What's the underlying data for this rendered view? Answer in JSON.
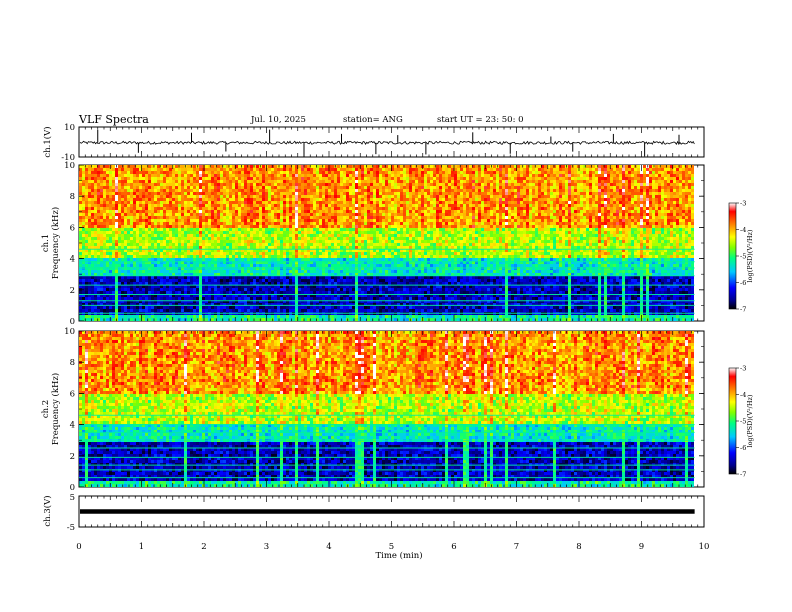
{
  "header": {
    "title": "VLF Spectra",
    "date": "Jul. 10, 2025",
    "station": "station= ANG",
    "start": "start UT = 23: 50: 0"
  },
  "colors": {
    "spectrogram_scale": [
      "#000000",
      "#00008b",
      "#0000ff",
      "#00c8ff",
      "#00ff80",
      "#80ff00",
      "#ffff00",
      "#ff8000",
      "#ff0000",
      "#ffffff"
    ]
  },
  "chart_data": [
    {
      "type": "line",
      "name": "ch1-waveform",
      "ylabel": "ch.1(V)",
      "ylim": [
        -10,
        10
      ],
      "ytick_labels": [
        "10",
        "-10"
      ],
      "xlim": [
        0,
        10
      ],
      "baseline": -0.5,
      "noise_amplitude": 1.0,
      "spikes": [
        0.3,
        0.95,
        1.8,
        2.35,
        3.05,
        3.6,
        4.2,
        4.75,
        5.1,
        5.55,
        6.3,
        6.9,
        7.55,
        7.9,
        8.55,
        9.05,
        9.6
      ]
    },
    {
      "type": "heatmap",
      "name": "ch1-spectrogram",
      "ylabel_lines": [
        "ch.1",
        "Frequency (kHz)"
      ],
      "ylim": [
        0,
        10
      ],
      "yticks": [
        0,
        2,
        4,
        6,
        8,
        10
      ],
      "xlim": [
        0,
        9.85
      ],
      "colorbar": {
        "label": "log(PSD)(V²/Hz)",
        "range": [
          -7,
          -3
        ],
        "ticks": [
          "-3",
          "-4",
          "-5",
          "-6",
          "-7"
        ]
      },
      "narrowband_khz": [
        0.5,
        1.0,
        1.3,
        1.7,
        2.3,
        2.9,
        3.4,
        3.8,
        4.6
      ]
    },
    {
      "type": "heatmap",
      "name": "ch2-spectrogram",
      "ylabel_lines": [
        "ch.2",
        "Frequency (kHz)"
      ],
      "ylim": [
        0,
        10
      ],
      "yticks": [
        0,
        2,
        4,
        6,
        8,
        10
      ],
      "xlim": [
        0,
        9.85
      ],
      "colorbar": {
        "label": "log(PSD)(V²/Hz)",
        "range": [
          -7,
          -3
        ],
        "ticks": [
          "-3",
          "-4",
          "-5",
          "-6",
          "-7"
        ]
      },
      "narrowband_khz": [
        0.6,
        1.1,
        1.4,
        1.9,
        2.5,
        3.0,
        3.5,
        4.0,
        4.6
      ]
    },
    {
      "type": "line",
      "name": "ch3-waveform",
      "ylabel": "ch.3(V)",
      "ylim": [
        -5,
        5
      ],
      "ytick_labels": [
        "5",
        "-5"
      ],
      "xlim": [
        0,
        9.85
      ],
      "baseline": 0
    }
  ],
  "xaxis": {
    "label": "Time (min)",
    "range": [
      0,
      10
    ],
    "ticks": [
      "0",
      "1",
      "2",
      "3",
      "4",
      "5",
      "6",
      "7",
      "8",
      "9",
      "10"
    ]
  }
}
